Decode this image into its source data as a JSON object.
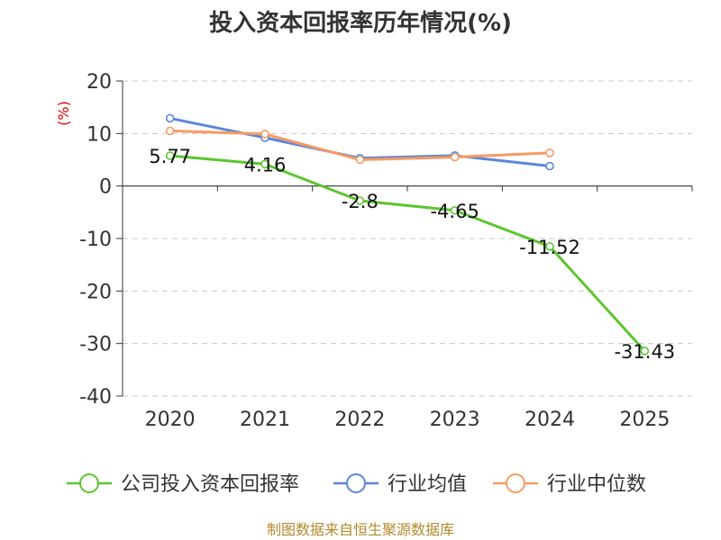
{
  "chart_data": {
    "type": "line",
    "title": "投入资本回报率历年情况(%)",
    "ylabel": "(%)",
    "xlabel": "",
    "categories": [
      "2020",
      "2021",
      "2022",
      "2023",
      "2024",
      "2025"
    ],
    "ylim": [
      -40,
      20
    ],
    "yticks": [
      20,
      10,
      0,
      -10,
      -20,
      -30,
      -40
    ],
    "grid": true,
    "legend_position": "bottom",
    "series": [
      {
        "name": "公司投入资本回报率",
        "color": "#5cc52e",
        "values": [
          5.77,
          4.16,
          -2.8,
          -4.65,
          -11.52,
          -31.43
        ],
        "labels": [
          "5.77",
          "4.16",
          "-2.8",
          "-4.65",
          "-11.52",
          "-31.43"
        ]
      },
      {
        "name": "行业均值",
        "color": "#5b86dc",
        "values": [
          12.9,
          9.2,
          5.3,
          5.8,
          3.8,
          null
        ]
      },
      {
        "name": "行业中位数",
        "color": "#f89a62",
        "values": [
          10.5,
          9.9,
          5.0,
          5.5,
          6.3,
          null
        ]
      }
    ],
    "source": "制图数据来自恒生聚源数据库"
  }
}
